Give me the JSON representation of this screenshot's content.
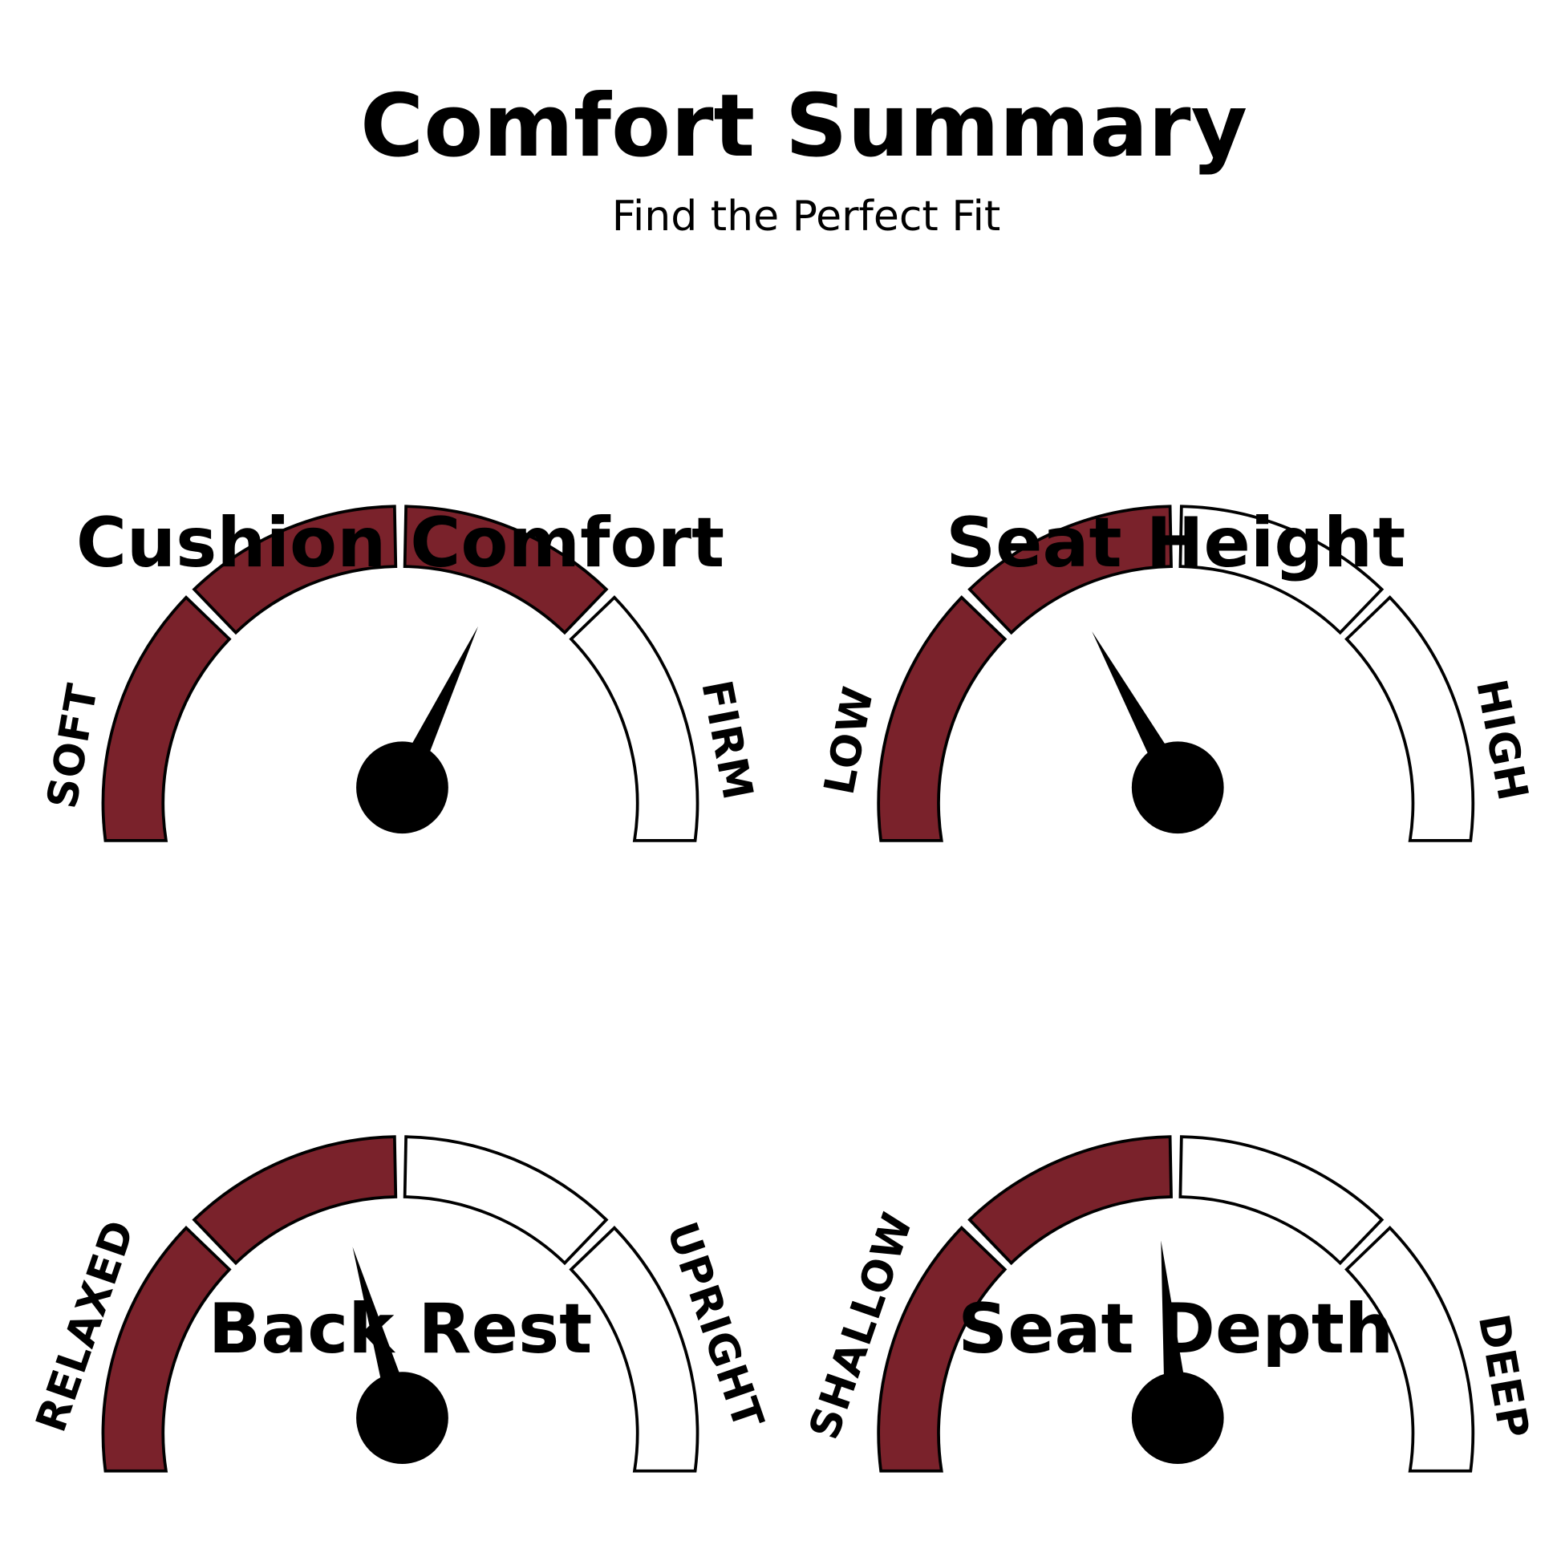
{
  "header": {
    "title": "Comfort Summary",
    "subtitle": "Find the Perfect Fit"
  },
  "colors": {
    "filled": "#7a222b",
    "empty": "#ffffff",
    "outline": "#000000",
    "needle": "#000000"
  },
  "gauges": [
    {
      "title": "Cushion Comfort",
      "left_label": "SOFT",
      "right_label": "FIRM",
      "segments_total": 4,
      "segments_filled": 3,
      "needle_percent": 64
    },
    {
      "title": "Seat Height",
      "left_label": "LOW",
      "right_label": "HIGH",
      "segments_total": 4,
      "segments_filled": 2,
      "needle_percent": 34
    },
    {
      "title": "Back Rest",
      "left_label": "RELAXED",
      "right_label": "UPRIGHT",
      "segments_total": 4,
      "segments_filled": 2,
      "needle_percent": 41
    },
    {
      "title": "Seat Depth",
      "left_label": "SHALLOW",
      "right_label": "DEEP",
      "segments_total": 4,
      "segments_filled": 2,
      "needle_percent": 47
    }
  ]
}
